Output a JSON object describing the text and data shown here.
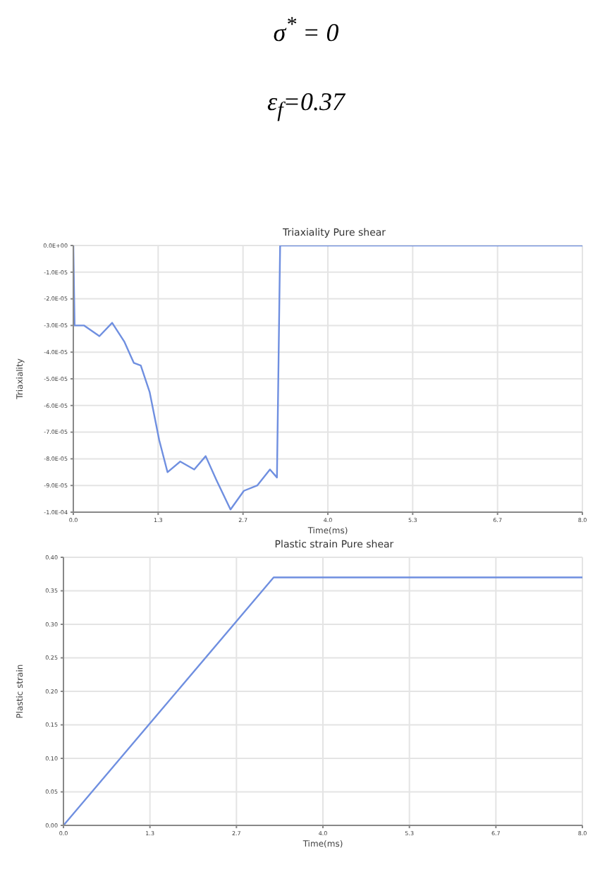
{
  "chart_data": [
    {
      "type": "other",
      "annotations": [
        "σ$^{*}$ = 0",
        "ε$_{f}$=0.37"
      ]
    },
    {
      "type": "line",
      "title": "Triaxiality Pure shear",
      "xlabel": "Time(ms)",
      "ylabel": "Triaxiality",
      "grid": true,
      "marker": "none",
      "color": "#6f8fe0",
      "x": [
        0,
        0.02,
        0.17,
        0.41,
        0.61,
        0.8,
        0.95,
        1.06,
        1.2,
        1.35,
        1.48,
        1.68,
        1.9,
        2.08,
        2.25,
        2.47,
        2.68,
        2.89,
        3.09,
        3.2,
        3.25,
        8
      ],
      "values": [
        0,
        -3e-05,
        -3e-05,
        -3.4e-05,
        -2.9e-05,
        -3.6e-05,
        -4.4e-05,
        -4.5e-05,
        -5.5e-05,
        -7.3e-05,
        -8.5e-05,
        -8.1e-05,
        -8.4e-05,
        -7.9e-05,
        -8.8e-05,
        -9.9e-05,
        -9.2e-05,
        -9e-05,
        -8.4e-05,
        -8.7e-05,
        0,
        0
      ],
      "xlim": [
        0,
        8
      ],
      "xticks": [
        {
          "value": 0,
          "label": "0.0"
        },
        {
          "value": 1.3333,
          "label": "1.3"
        },
        {
          "value": 2.6667,
          "label": "2.7"
        },
        {
          "value": 4,
          "label": "4.0"
        },
        {
          "value": 5.3333,
          "label": "5.3"
        },
        {
          "value": 6.6667,
          "label": "6.7"
        },
        {
          "value": 8,
          "label": "8.0"
        }
      ],
      "ylim": [
        -0.0001,
        0
      ],
      "yticks": [
        {
          "value": 0,
          "label": "0.0E+00"
        },
        {
          "value": -1e-05,
          "label": "-1.0E-05"
        },
        {
          "value": -2e-05,
          "label": "-2.0E-05"
        },
        {
          "value": -3e-05,
          "label": "-3.0E-05"
        },
        {
          "value": -4e-05,
          "label": "-4.0E-05"
        },
        {
          "value": -5e-05,
          "label": "-5.0E-05"
        },
        {
          "value": -6e-05,
          "label": "-6.0E-05"
        },
        {
          "value": -7e-05,
          "label": "-7.0E-05"
        },
        {
          "value": -8e-05,
          "label": "-8.0E-05"
        },
        {
          "value": -9e-05,
          "label": "-9.0E-05"
        },
        {
          "value": -0.0001,
          "label": "-1.0E-04"
        }
      ]
    },
    {
      "type": "line",
      "title": "Plastic strain Pure shear",
      "xlabel": "Time(ms)",
      "ylabel": "Plastic strain",
      "grid": true,
      "marker": "none",
      "color": "#6f8fe0",
      "x": [
        0,
        3.24,
        8
      ],
      "values": [
        0,
        0.37,
        0.37
      ],
      "xlim": [
        0,
        8
      ],
      "xticks": [
        {
          "value": 0,
          "label": "0.0"
        },
        {
          "value": 1.3333,
          "label": "1.3"
        },
        {
          "value": 2.6667,
          "label": "2.7"
        },
        {
          "value": 4,
          "label": "4.0"
        },
        {
          "value": 5.3333,
          "label": "5.3"
        },
        {
          "value": 6.6667,
          "label": "6.7"
        },
        {
          "value": 8,
          "label": "8.0"
        }
      ],
      "ylim": [
        0,
        0.4
      ],
      "yticks": [
        {
          "value": 0,
          "label": "0.00"
        },
        {
          "value": 0.05,
          "label": "0.05"
        },
        {
          "value": 0.1,
          "label": "0.10"
        },
        {
          "value": 0.15,
          "label": "0.15"
        },
        {
          "value": 0.2,
          "label": "0.20"
        },
        {
          "value": 0.25,
          "label": "0.25"
        },
        {
          "value": 0.3,
          "label": "0.30"
        },
        {
          "value": 0.35,
          "label": "0.35"
        },
        {
          "value": 0.4,
          "label": "0.40"
        }
      ]
    }
  ]
}
